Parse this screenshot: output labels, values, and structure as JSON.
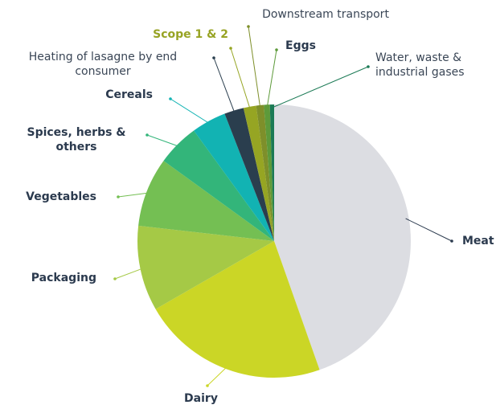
{
  "chart_data": {
    "type": "pie",
    "categories": [
      "Meat",
      "Dairy",
      "Packaging",
      "Vegetables",
      "Spices, herbs & others",
      "Cereals",
      "Heating of lasagne by end consumer",
      "Scope 1 & 2",
      "Downstream transport",
      "Eggs",
      "Water, waste & industrial gases"
    ],
    "values": [
      44.6,
      22.1,
      10.1,
      8.2,
      5.0,
      4.1,
      2.3,
      1.5,
      0.9,
      0.7,
      0.5
    ],
    "colors": [
      "#dcdde2",
      "#cbd626",
      "#a5c946",
      "#74bf53",
      "#33b57a",
      "#12b3b3",
      "#2a3e4e",
      "#96a523",
      "#7e8f2a",
      "#5d9a3a",
      "#1b7a55"
    ]
  }
}
